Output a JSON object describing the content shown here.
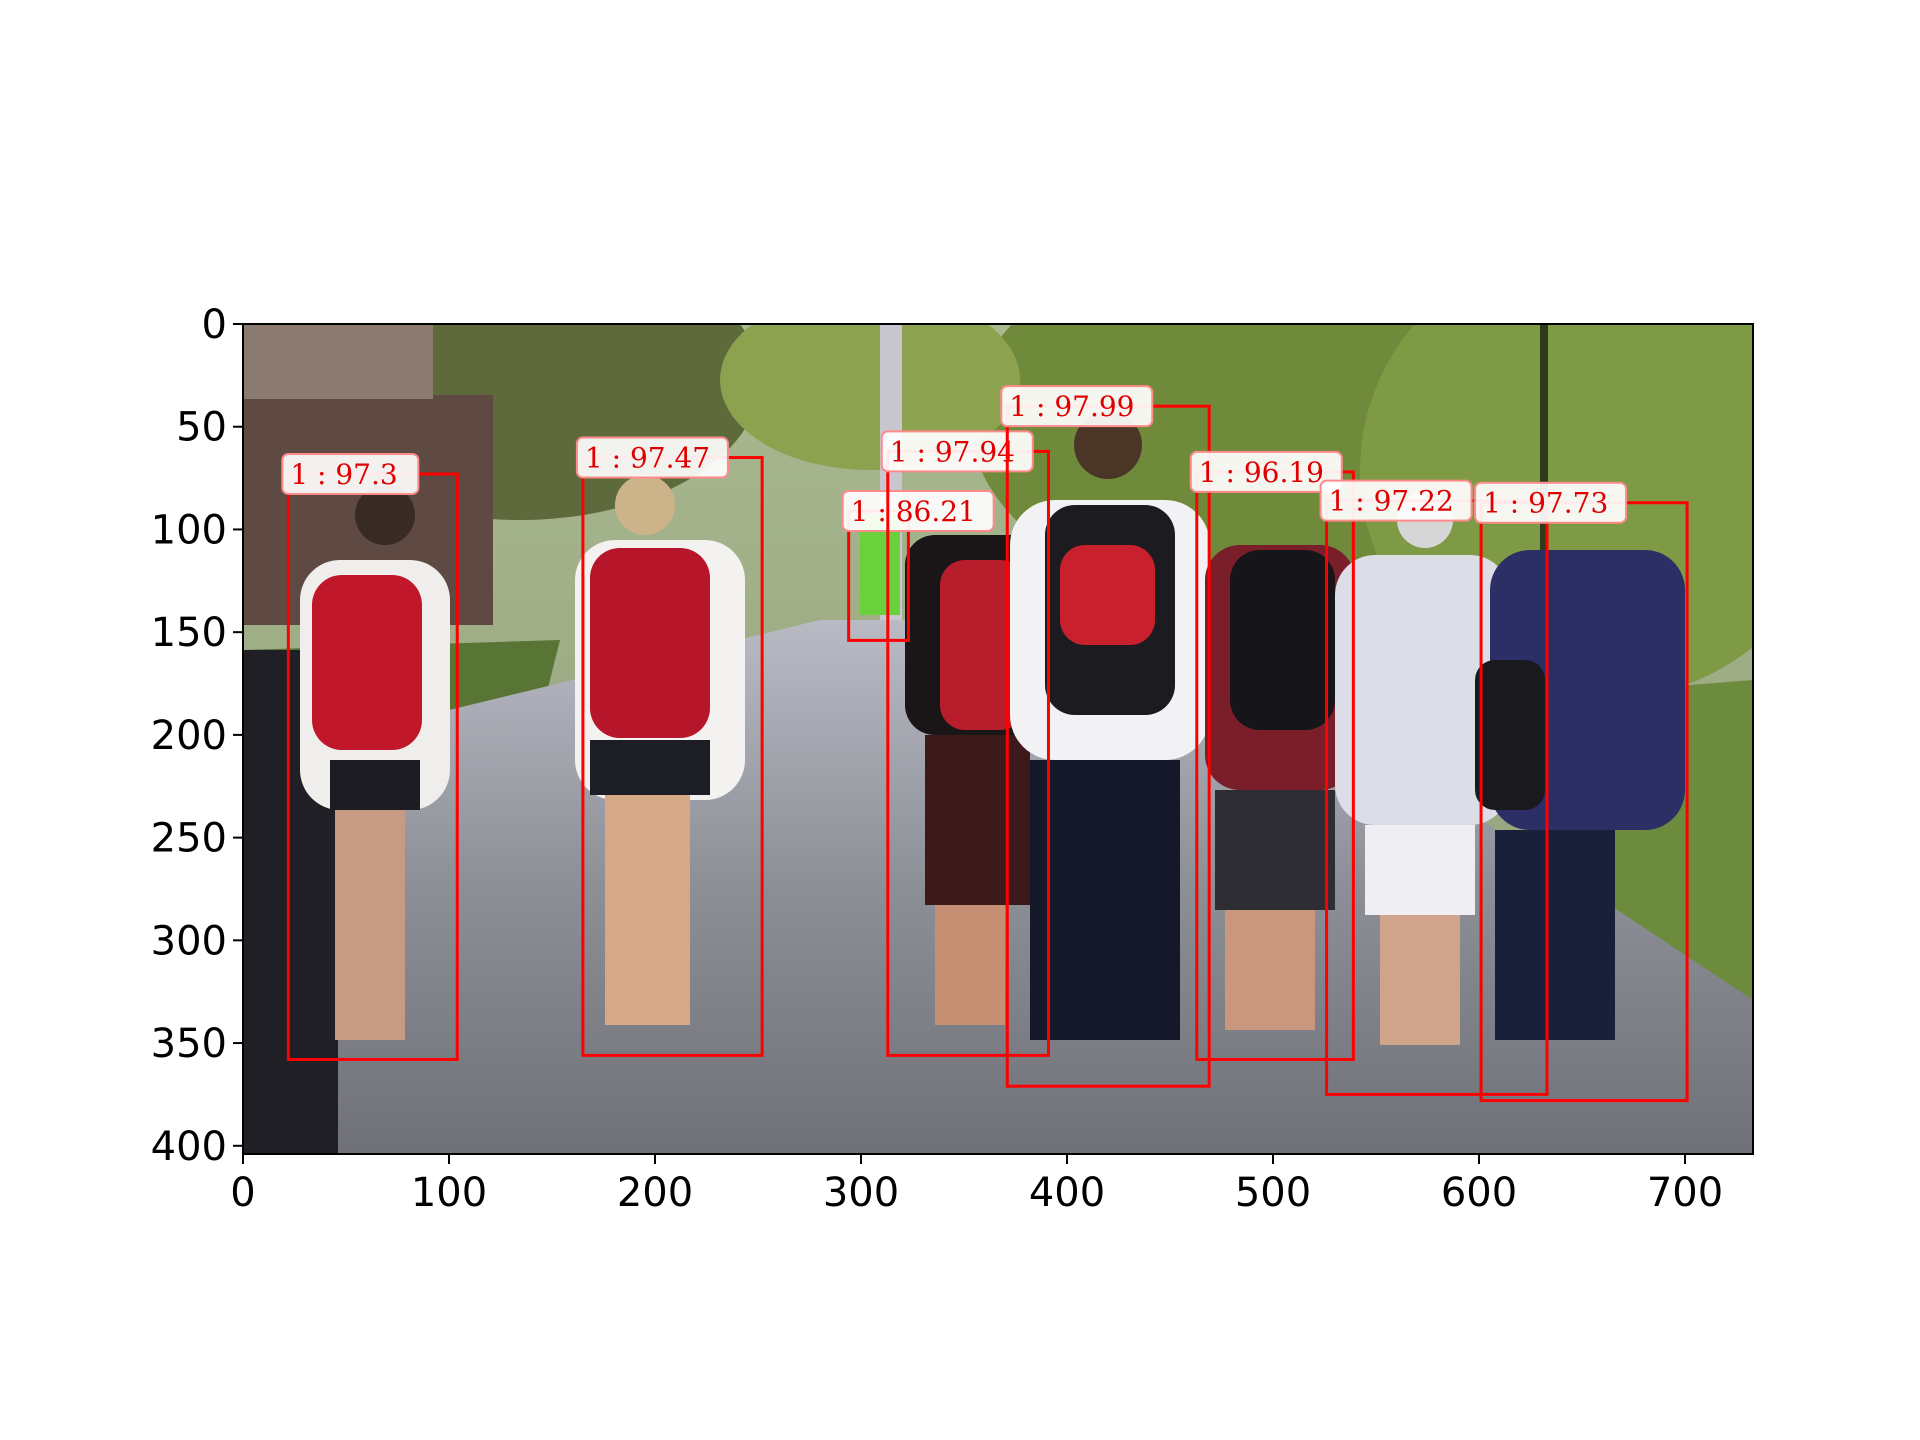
{
  "figure": {
    "kind": "image-with-detection-overlays",
    "scene": "street-photo-pedestrians-with-backpacks",
    "axis_color": "#000000",
    "box_color": "#ff0000",
    "label_text_color": "#e00000",
    "label_border_color": "#ff8a8a"
  },
  "axes": {
    "x": {
      "min": 0,
      "max": 733,
      "ticks": [
        0,
        100,
        200,
        300,
        400,
        500,
        600,
        700
      ]
    },
    "y": {
      "min": 0,
      "max": 404,
      "inverted": true,
      "ticks": [
        0,
        50,
        100,
        150,
        200,
        250,
        300,
        350,
        400
      ]
    }
  },
  "detections": [
    {
      "label": "1 : 97.3",
      "x1": 22,
      "y1": 73,
      "x2": 104,
      "y2": 358
    },
    {
      "label": "1 : 97.47",
      "x1": 165,
      "y1": 65,
      "x2": 252,
      "y2": 356
    },
    {
      "label": "1 : 86.21",
      "x1": 294,
      "y1": 91,
      "x2": 323,
      "y2": 154
    },
    {
      "label": "1 : 97.94",
      "x1": 313,
      "y1": 62,
      "x2": 391,
      "y2": 356
    },
    {
      "label": "1 : 97.99",
      "x1": 371,
      "y1": 40,
      "x2": 469,
      "y2": 371
    },
    {
      "label": "1 : 96.19",
      "x1": 463,
      "y1": 72,
      "x2": 539,
      "y2": 358
    },
    {
      "label": "1 : 97.22",
      "x1": 526,
      "y1": 86,
      "x2": 633,
      "y2": 375
    },
    {
      "label": "1 : 97.73",
      "x1": 601,
      "y1": 87,
      "x2": 701,
      "y2": 378
    }
  ]
}
